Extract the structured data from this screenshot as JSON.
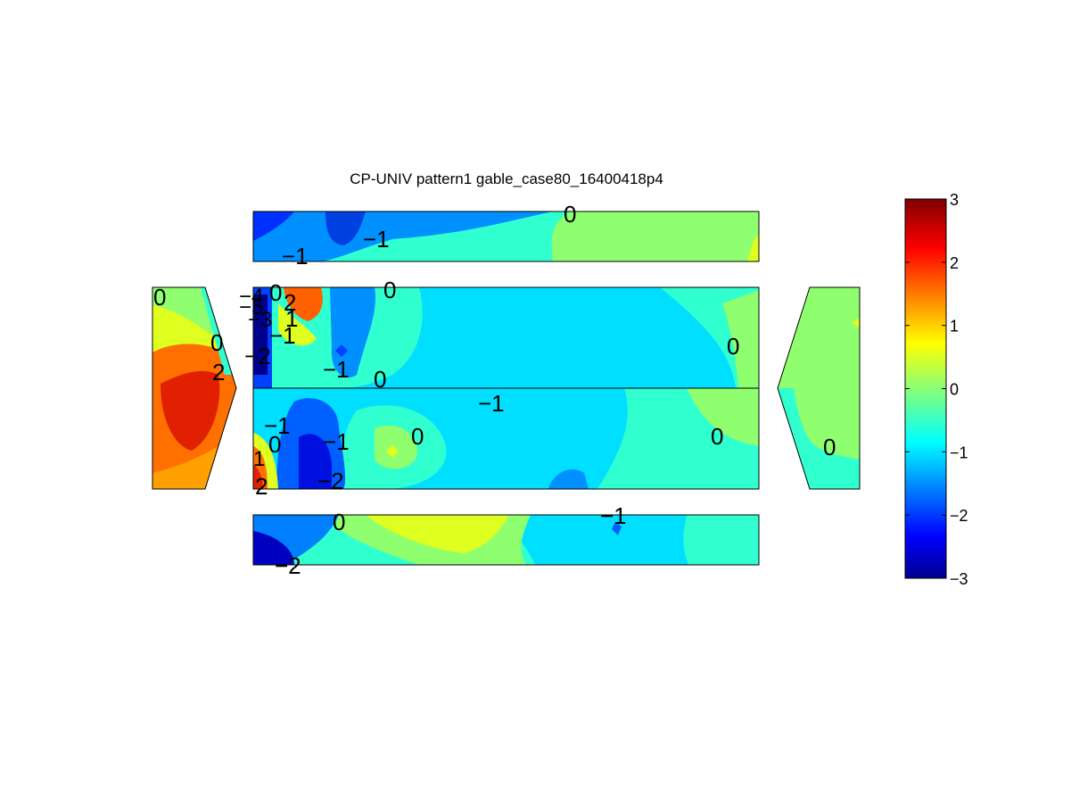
{
  "chart_data": {
    "type": "heatmap",
    "title": "CP-UNIV pattern1 gable_case80_16400418p4",
    "colormap": "jet",
    "clim": [
      -3,
      3
    ],
    "colorbar": {
      "ticks": [
        3,
        2,
        1,
        0,
        -1,
        -2,
        -3
      ],
      "tick_labels": [
        "3",
        "2",
        "1",
        "0",
        "−1",
        "−2",
        "−3"
      ],
      "placement": "right"
    },
    "panels": [
      {
        "name": "top",
        "contour_labels": [
          "0",
          "−1",
          "−1"
        ]
      },
      {
        "name": "left",
        "contour_labels": [
          "0",
          "0",
          "2",
          "−4",
          "−5",
          "−3",
          "−2"
        ]
      },
      {
        "name": "upper-middle",
        "contour_labels": [
          "0",
          "0",
          "0",
          "−1",
          "2",
          "1",
          "−1",
          "0"
        ]
      },
      {
        "name": "lower-middle",
        "contour_labels": [
          "−1",
          "−1",
          "0",
          "−1",
          "0",
          "0",
          "1",
          "2",
          "−2"
        ]
      },
      {
        "name": "right",
        "contour_labels": [
          "0"
        ]
      },
      {
        "name": "bottom",
        "contour_labels": [
          "0",
          "−1",
          "−2"
        ]
      }
    ],
    "colors": {
      "dark_blue": "#00008f",
      "blue": "#0050ff",
      "cyan": "#00dfff",
      "aqua_green": "#30ffcf",
      "green": "#8fff70",
      "yellow": "#dfff20",
      "orange": "#ff7000",
      "red": "#df1000"
    }
  }
}
